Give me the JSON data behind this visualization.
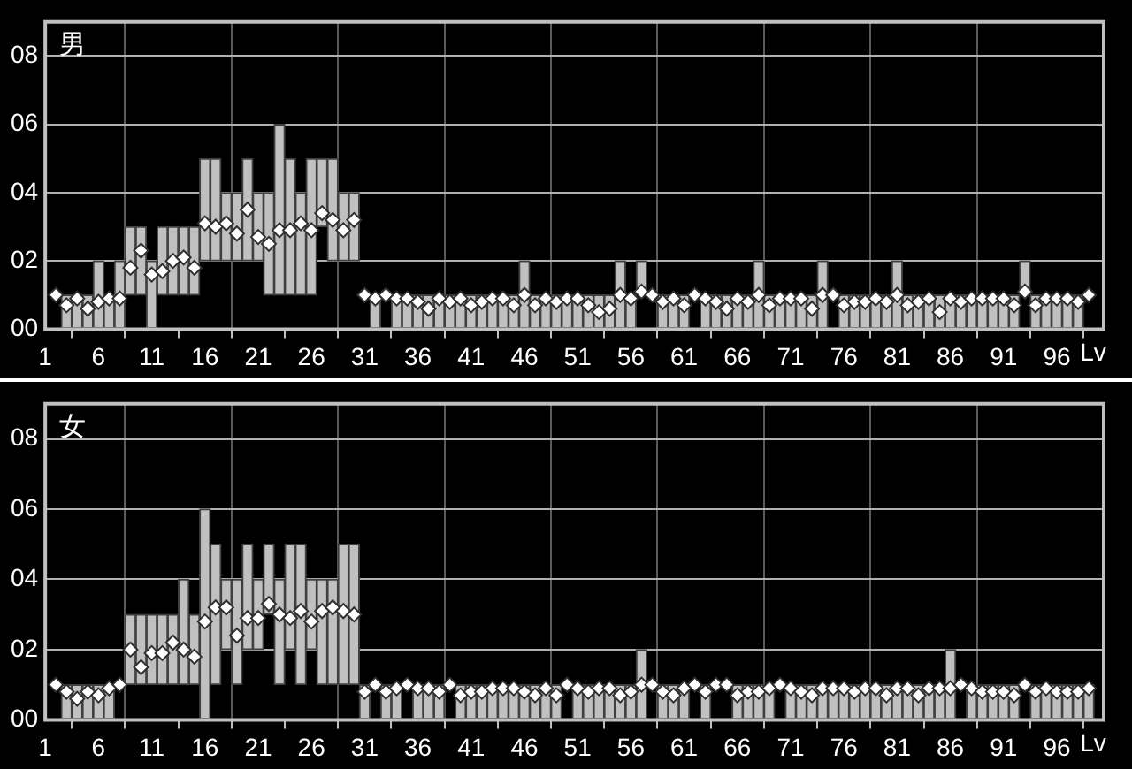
{
  "chart_data": [
    {
      "type": "bar",
      "title": "男",
      "xlabel": "Lv",
      "x": [
        2,
        3,
        4,
        5,
        6,
        7,
        8,
        9,
        10,
        11,
        12,
        13,
        14,
        15,
        16,
        17,
        18,
        19,
        20,
        21,
        22,
        23,
        24,
        25,
        26,
        27,
        28,
        29,
        30,
        31,
        32,
        33,
        34,
        35,
        36,
        37,
        38,
        39,
        40,
        41,
        42,
        43,
        44,
        45,
        46,
        47,
        48,
        49,
        50,
        51,
        52,
        53,
        54,
        55,
        56,
        57,
        58,
        59,
        60,
        61,
        62,
        63,
        64,
        65,
        66,
        67,
        68,
        69,
        70,
        71,
        72,
        73,
        74,
        75,
        76,
        77,
        78,
        79,
        80,
        81,
        82,
        83,
        84,
        85,
        86,
        87,
        88,
        89,
        90,
        91,
        92,
        93,
        94,
        95,
        96,
        97,
        98,
        99
      ],
      "series": [
        {
          "color": "#c0c0c0",
          "base": [
            null,
            0,
            0,
            0,
            0,
            0,
            0,
            1,
            1,
            0,
            1,
            1,
            1,
            1,
            2,
            2,
            2,
            2,
            2,
            2,
            1,
            1,
            1,
            1,
            1,
            3,
            2,
            2,
            2,
            null,
            0,
            null,
            0,
            0,
            0,
            0,
            0,
            0,
            0,
            0,
            0,
            0,
            0,
            0,
            0,
            0,
            0,
            0,
            0,
            0,
            0,
            0,
            0,
            0,
            0,
            1,
            null,
            0,
            0,
            0,
            null,
            0,
            0,
            0,
            0,
            0,
            0,
            0,
            0,
            0,
            0,
            0,
            0,
            null,
            0,
            0,
            0,
            0,
            0,
            0,
            0,
            0,
            0,
            0,
            0,
            0,
            0,
            0,
            0,
            0,
            0,
            1,
            0,
            0,
            0,
            0,
            0,
            null
          ],
          "values": [
            null,
            1,
            1,
            1,
            2,
            1,
            2,
            2,
            2,
            2,
            2,
            2,
            2,
            2,
            3,
            3,
            2,
            2,
            3,
            2,
            3,
            5,
            4,
            3,
            4,
            2,
            3,
            2,
            2,
            null,
            1,
            null,
            1,
            1,
            1,
            1,
            1,
            1,
            1,
            1,
            1,
            1,
            1,
            1,
            2,
            1,
            1,
            1,
            1,
            1,
            1,
            1,
            1,
            2,
            1,
            1,
            null,
            1,
            1,
            1,
            null,
            1,
            1,
            1,
            1,
            1,
            2,
            1,
            1,
            1,
            1,
            1,
            2,
            null,
            1,
            1,
            1,
            1,
            1,
            2,
            1,
            1,
            1,
            1,
            1,
            1,
            1,
            1,
            1,
            1,
            1,
            1,
            1,
            1,
            1,
            1,
            1,
            null
          ]
        },
        {
          "type": "scatter",
          "color": "#ffffff",
          "marker": "diamond",
          "values": [
            1.0,
            0.7,
            0.9,
            0.6,
            0.8,
            0.9,
            0.9,
            1.8,
            2.3,
            1.6,
            1.7,
            2.0,
            2.1,
            1.8,
            3.1,
            3.0,
            3.1,
            2.8,
            3.5,
            2.7,
            2.5,
            2.9,
            2.9,
            3.1,
            2.9,
            3.4,
            3.2,
            2.9,
            3.2,
            1.0,
            0.9,
            1.0,
            0.9,
            0.9,
            0.8,
            0.6,
            0.9,
            0.8,
            0.9,
            0.7,
            0.8,
            0.9,
            0.9,
            0.7,
            1.0,
            0.7,
            0.9,
            0.8,
            0.9,
            0.9,
            0.7,
            0.5,
            0.6,
            1.0,
            0.9,
            1.1,
            1.0,
            0.8,
            0.9,
            0.7,
            1.0,
            0.9,
            0.8,
            0.6,
            0.9,
            0.8,
            1.0,
            0.7,
            0.9,
            0.9,
            0.9,
            0.6,
            1.0,
            1.0,
            0.7,
            0.8,
            0.8,
            0.9,
            0.8,
            1.0,
            0.7,
            0.8,
            0.9,
            0.5,
            0.9,
            0.8,
            0.9,
            0.9,
            0.9,
            0.9,
            0.7,
            1.1,
            0.7,
            0.9,
            0.9,
            0.9,
            0.8,
            1.0
          ]
        }
      ],
      "xlim": [
        1,
        100.4
      ],
      "xticks": [
        1,
        6,
        11,
        16,
        21,
        26,
        31,
        36,
        41,
        46,
        51,
        56,
        61,
        66,
        71,
        76,
        81,
        86,
        91,
        96
      ],
      "ylim": [
        0,
        9
      ],
      "yticks": [
        {
          "value": 0,
          "label": "00"
        },
        {
          "value": 2,
          "label": "02"
        },
        {
          "value": 4,
          "label": "04"
        },
        {
          "value": 6,
          "label": "06"
        },
        {
          "value": 8,
          "label": "08"
        }
      ],
      "grid": true,
      "legend": false
    },
    {
      "type": "bar",
      "title": "女",
      "xlabel": "Lv",
      "x": [
        2,
        3,
        4,
        5,
        6,
        7,
        8,
        9,
        10,
        11,
        12,
        13,
        14,
        15,
        16,
        17,
        18,
        19,
        20,
        21,
        22,
        23,
        24,
        25,
        26,
        27,
        28,
        29,
        30,
        31,
        32,
        33,
        34,
        35,
        36,
        37,
        38,
        39,
        40,
        41,
        42,
        43,
        44,
        45,
        46,
        47,
        48,
        49,
        50,
        51,
        52,
        53,
        54,
        55,
        56,
        57,
        58,
        59,
        60,
        61,
        62,
        63,
        64,
        65,
        66,
        67,
        68,
        69,
        70,
        71,
        72,
        73,
        74,
        75,
        76,
        77,
        78,
        79,
        80,
        81,
        82,
        83,
        84,
        85,
        86,
        87,
        88,
        89,
        90,
        91,
        92,
        93,
        94,
        95,
        96,
        97,
        98,
        99
      ],
      "series": [
        {
          "color": "#c0c0c0",
          "base": [
            null,
            0,
            0,
            0,
            0,
            0,
            null,
            1,
            1,
            1,
            1,
            1,
            1,
            1,
            0,
            1,
            2,
            1,
            2,
            2,
            3,
            1,
            2,
            1,
            2,
            1,
            1,
            1,
            1,
            0,
            null,
            0,
            0,
            null,
            0,
            0,
            0,
            null,
            0,
            0,
            0,
            0,
            0,
            0,
            0,
            0,
            0,
            0,
            null,
            0,
            0,
            0,
            0,
            0,
            0,
            0,
            null,
            0,
            0,
            0,
            null,
            0,
            null,
            null,
            0,
            0,
            0,
            0,
            null,
            0,
            0,
            0,
            0,
            0,
            0,
            0,
            0,
            0,
            0,
            0,
            0,
            0,
            0,
            0,
            0,
            null,
            0,
            0,
            0,
            0,
            0,
            null,
            0,
            0,
            0,
            0,
            0,
            0
          ],
          "values": [
            null,
            1,
            1,
            1,
            1,
            1,
            null,
            2,
            2,
            2,
            2,
            2,
            3,
            2,
            6,
            4,
            2,
            3,
            3,
            2,
            2,
            3,
            3,
            4,
            2,
            3,
            3,
            4,
            4,
            1,
            null,
            1,
            1,
            null,
            1,
            1,
            1,
            null,
            1,
            1,
            1,
            1,
            1,
            1,
            1,
            1,
            1,
            1,
            null,
            1,
            1,
            1,
            1,
            1,
            1,
            2,
            null,
            1,
            1,
            1,
            null,
            1,
            null,
            null,
            1,
            1,
            1,
            1,
            null,
            1,
            1,
            1,
            1,
            1,
            1,
            1,
            1,
            1,
            1,
            1,
            1,
            1,
            1,
            1,
            2,
            null,
            1,
            1,
            1,
            1,
            1,
            null,
            1,
            1,
            1,
            1,
            1,
            1
          ]
        },
        {
          "type": "scatter",
          "color": "#ffffff",
          "marker": "diamond",
          "values": [
            1.0,
            0.8,
            0.6,
            0.8,
            0.7,
            0.9,
            1.0,
            2.0,
            1.5,
            1.9,
            1.9,
            2.2,
            2.0,
            1.8,
            2.8,
            3.2,
            3.2,
            2.4,
            2.9,
            2.9,
            3.3,
            3.0,
            2.9,
            3.1,
            2.8,
            3.1,
            3.2,
            3.1,
            3.0,
            0.8,
            1.0,
            0.8,
            0.9,
            1.0,
            0.9,
            0.9,
            0.8,
            1.0,
            0.7,
            0.8,
            0.8,
            0.9,
            0.9,
            0.9,
            0.8,
            0.7,
            0.9,
            0.7,
            1.0,
            0.9,
            0.8,
            0.9,
            0.9,
            0.7,
            0.8,
            1.0,
            1.0,
            0.8,
            0.7,
            0.9,
            1.0,
            0.8,
            1.0,
            1.0,
            0.7,
            0.8,
            0.8,
            0.9,
            1.0,
            0.9,
            0.8,
            0.7,
            0.9,
            0.9,
            0.9,
            0.8,
            0.9,
            0.9,
            0.7,
            0.9,
            0.9,
            0.7,
            0.9,
            0.9,
            0.9,
            1.0,
            0.9,
            0.8,
            0.8,
            0.8,
            0.7,
            1.0,
            0.8,
            0.9,
            0.8,
            0.8,
            0.8,
            0.9
          ]
        }
      ],
      "xlim": [
        1,
        100.4
      ],
      "xticks": [
        1,
        6,
        11,
        16,
        21,
        26,
        31,
        36,
        41,
        46,
        51,
        56,
        61,
        66,
        71,
        76,
        81,
        86,
        91,
        96
      ],
      "ylim": [
        0,
        9
      ],
      "yticks": [
        {
          "value": 0,
          "label": "00"
        },
        {
          "value": 2,
          "label": "02"
        },
        {
          "value": 4,
          "label": "04"
        },
        {
          "value": 6,
          "label": "06"
        },
        {
          "value": 8,
          "label": "08"
        }
      ],
      "grid": true,
      "legend": false
    }
  ]
}
